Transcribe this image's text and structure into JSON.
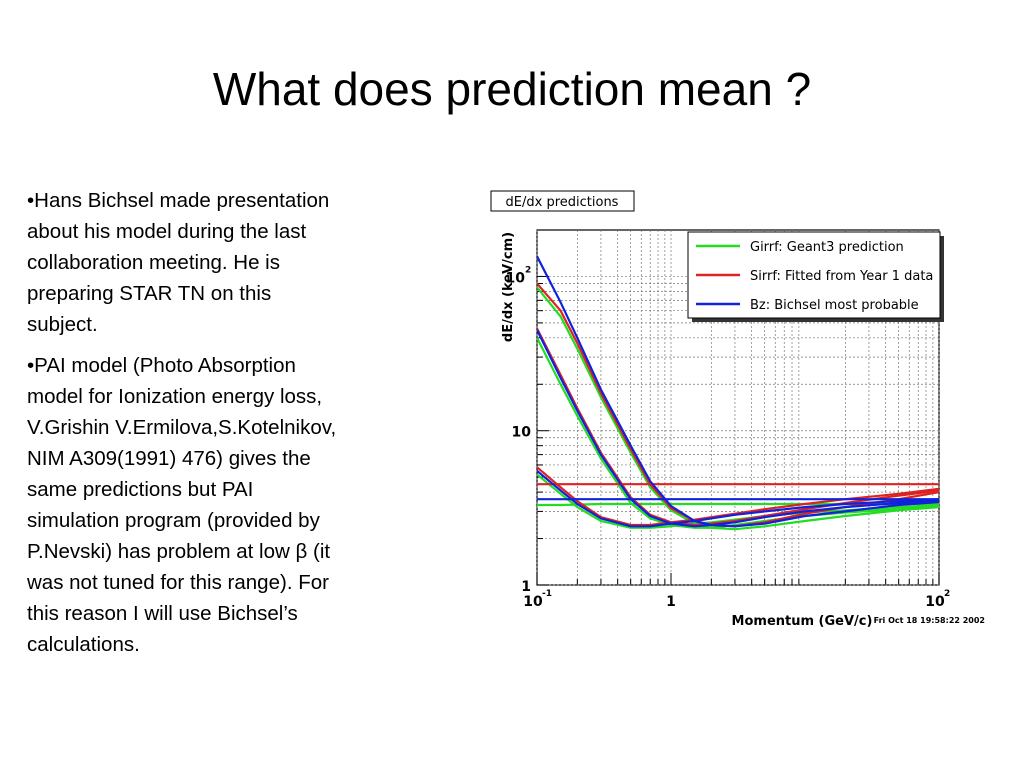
{
  "slide": {
    "title": "What does prediction mean ?",
    "bullets": [
      [
        "•Hans Bichsel made presentation",
        "about his model during the last",
        "collaboration meeting. He is",
        "preparing STAR TN on this",
        "subject."
      ],
      [
        "•PAI model (Photo Absorption",
        "model for Ionization energy loss,",
        "V.Grishin V.Ermilova,S.Kotelnikov,",
        "NIM  A309(1991) 476) gives the",
        "same predictions but PAI",
        "simulation program (provided by",
        "P.Nevski) has problem at low β (it",
        "was not tuned for this range). For",
        "this reason I will use Bichsel’s",
        "calculations."
      ]
    ]
  },
  "chart_data": {
    "type": "line",
    "title": "dE/dx predictions",
    "xlabel": "Momentum (GeV/c)",
    "ylabel": "dE/dx (keV/cm)",
    "timestamp": "Fri Oct 18 19:58:22 2002",
    "log_x": true,
    "log_y": true,
    "grid": true,
    "legend": "top-right",
    "xlim": [
      0.1,
      100
    ],
    "ylim": [
      1,
      200
    ],
    "xticks": [
      {
        "value": 0.1,
        "label": "10",
        "sup": "-1"
      },
      1,
      {
        "value": 100,
        "label": "10",
        "sup": "2"
      }
    ],
    "yticks": [
      1,
      10,
      {
        "value": 100,
        "label": "10",
        "sup": "2"
      }
    ],
    "x_minor_ticks": [
      0.2,
      0.3,
      0.4,
      0.5,
      0.6,
      0.7,
      0.8,
      0.9,
      2,
      3,
      4,
      5,
      6,
      7,
      8,
      9,
      20,
      30,
      40,
      50,
      60,
      70,
      80,
      90
    ],
    "y_minor_ticks": [
      2,
      3,
      4,
      5,
      6,
      7,
      8,
      9,
      20,
      30,
      40,
      50,
      60,
      70,
      80,
      90
    ],
    "x": [
      0.1,
      0.15,
      0.2,
      0.3,
      0.5,
      0.7,
      1,
      1.5,
      2,
      3,
      5,
      10,
      20,
      50,
      100
    ],
    "series": [
      {
        "name": "Girrf: Geant3 prediction",
        "color": "#22dd22",
        "curves": [
          [
            3.3,
            3.3,
            3.32,
            3.35,
            3.35,
            3.35,
            3.35,
            3.35,
            3.35,
            3.35,
            3.35,
            3.35,
            3.35,
            3.35,
            3.35
          ],
          [
            5.2,
            3.9,
            3.2,
            2.6,
            2.35,
            2.35,
            2.4,
            2.5,
            2.55,
            2.65,
            2.8,
            2.95,
            3.05,
            3.2,
            3.3
          ],
          [
            40,
            20,
            12.5,
            6.6,
            3.4,
            2.7,
            2.45,
            2.35,
            2.35,
            2.45,
            2.6,
            2.8,
            2.95,
            3.1,
            3.25
          ],
          [
            85,
            55,
            34,
            16.5,
            7.2,
            4.3,
            3.05,
            2.5,
            2.35,
            2.3,
            2.4,
            2.6,
            2.8,
            3.05,
            3.2
          ]
        ]
      },
      {
        "name": "Sirrf: Fitted from Year 1 data",
        "color": "#dd2222",
        "curves": [
          [
            4.5,
            4.5,
            4.5,
            4.5,
            4.5,
            4.5,
            4.5,
            4.5,
            4.5,
            4.5,
            4.5,
            4.5,
            4.5,
            4.5,
            4.5
          ],
          [
            5.8,
            4.3,
            3.5,
            2.75,
            2.45,
            2.45,
            2.55,
            2.65,
            2.75,
            2.9,
            3.1,
            3.35,
            3.6,
            3.9,
            4.2
          ],
          [
            46,
            23,
            14,
            7.2,
            3.7,
            2.85,
            2.55,
            2.45,
            2.5,
            2.6,
            2.8,
            3.1,
            3.4,
            3.8,
            4.1
          ],
          [
            90,
            60,
            37,
            17.5,
            7.6,
            4.5,
            3.15,
            2.6,
            2.45,
            2.4,
            2.55,
            2.9,
            3.2,
            3.6,
            4.0
          ]
        ]
      },
      {
        "name": "Bz: Bichsel most probable",
        "color": "#1122dd",
        "curves": [
          [
            3.6,
            3.6,
            3.6,
            3.6,
            3.6,
            3.6,
            3.6,
            3.6,
            3.6,
            3.6,
            3.6,
            3.6,
            3.6,
            3.6,
            3.6
          ],
          [
            5.5,
            4.1,
            3.35,
            2.7,
            2.4,
            2.4,
            2.5,
            2.6,
            2.7,
            2.85,
            3.0,
            3.2,
            3.35,
            3.5,
            3.6
          ],
          [
            45,
            22,
            13.5,
            7,
            3.6,
            2.8,
            2.5,
            2.4,
            2.45,
            2.55,
            2.75,
            3.0,
            3.2,
            3.4,
            3.5
          ],
          [
            135,
            68,
            40,
            18.5,
            8,
            4.7,
            3.25,
            2.6,
            2.45,
            2.4,
            2.5,
            2.8,
            3.0,
            3.3,
            3.45
          ]
        ]
      }
    ]
  }
}
